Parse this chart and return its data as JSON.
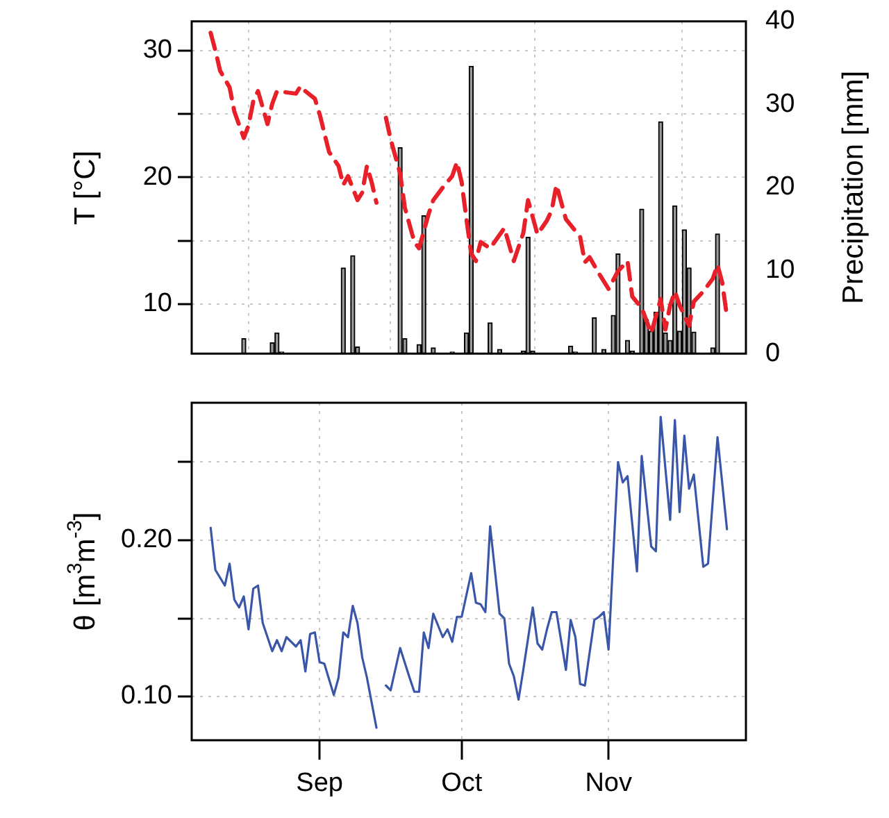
{
  "chart_data": [
    {
      "type": "bar",
      "ylabel": "T [°C]",
      "y2label": "Precipitation [mm]",
      "xlim": [
        "--08-05",
        "--11-30"
      ],
      "xticks": [
        {
          "value": "--09-01",
          "label": null
        },
        {
          "value": "--10-01",
          "label": null
        },
        {
          "value": "--11-01",
          "label": null
        }
      ],
      "ylim": [
        6.1,
        32.3
      ],
      "yticks": [
        10,
        {
          "value": 15,
          "label": null
        },
        20,
        {
          "value": 25,
          "label": null
        },
        30
      ],
      "y2lim": [
        0,
        40
      ],
      "y2ticks": [
        0,
        10,
        20,
        30,
        40
      ],
      "grid": true,
      "tick_labels": "y",
      "series": [
        {
          "type": "line",
          "color": "#e8202a",
          "line_style": "dashed",
          "x": [
            "--08-09",
            "--08-10",
            "--08-11",
            "--08-13",
            "--08-14",
            "--08-16",
            "--08-17",
            "--08-18",
            "--08-19",
            "--08-21",
            "--08-22",
            "--08-23",
            "--08-27",
            "--08-28",
            "--08-29",
            "--08-31",
            "--09-01",
            "--09-03",
            "--09-05",
            "--09-06",
            "--09-07",
            "--09-09",
            "--09-10",
            "--09-11",
            "--09-12",
            "--09-13",
            "--09-14",
            "--09-15",
            "--09-16",
            "--09-18",
            "--09-19",
            "--09-21",
            "--09-22",
            "--09-24",
            "--09-25",
            "--09-27",
            "--09-29",
            "--09-30",
            "--10-01",
            "--10-02",
            "--10-03",
            "--10-04",
            "--10-05",
            "--10-07",
            "--10-10",
            "--10-12",
            "--10-14",
            "--10-15",
            "--10-17",
            "--10-19",
            "--10-20",
            "--10-21",
            "--10-23",
            "--10-26",
            "--10-27",
            "--10-28",
            "--10-30",
            "--11-01",
            "--11-03",
            "--11-05",
            "--11-06",
            "--11-08",
            "--11-10",
            "--11-12",
            "--11-13",
            "--11-14",
            "--11-15",
            "--11-16",
            "--11-18",
            "--11-19",
            "--11-21",
            "--11-23",
            "--11-24",
            "--11-25",
            "--11-26"
          ],
          "values": [
            31.4,
            30.0,
            28.4,
            27.1,
            25.2,
            23.1,
            24.1,
            26.0,
            26.8,
            24.2,
            25.8,
            26.8,
            26.6,
            27.2,
            26.8,
            26.2,
            25.0,
            22.0,
            20.9,
            19.4,
            20.1,
            18.2,
            18.8,
            20.9,
            19.6,
            18.0,
            null,
            24.7,
            23.0,
            20.3,
            17.6,
            14.9,
            14.4,
            17.1,
            18.2,
            19.2,
            20.1,
            21.2,
            19.6,
            16.7,
            14.0,
            13.4,
            14.9,
            14.4,
            16.0,
            13.4,
            15.6,
            18.2,
            15.5,
            16.6,
            17.4,
            19.4,
            16.7,
            15.3,
            13.3,
            13.7,
            12.4,
            11.2,
            12.6,
            13.4,
            10.6,
            9.7,
            7.7,
            10.4,
            8.0,
            9.9,
            11.0,
            9.9,
            8.3,
            10.2,
            11.0,
            12.0,
            13.1,
            11.7,
            9.0
          ]
        },
        {
          "type": "bar",
          "axis": "y2",
          "color": "#9a9a9a",
          "x": [
            "--08-16",
            "--08-22",
            "--08-23",
            "--08-24",
            "--09-06",
            "--09-08",
            "--09-09",
            "--09-18",
            "--09-19",
            "--09-22",
            "--09-23",
            "--09-25",
            "--09-29",
            "--10-02",
            "--10-03",
            "--10-07",
            "--10-09",
            "--10-14",
            "--10-15",
            "--10-16",
            "--10-24",
            "--10-25",
            "--10-29",
            "--10-31",
            "--11-02",
            "--11-03",
            "--11-05",
            "--11-06",
            "--11-08",
            "--11-09",
            "--11-10",
            "--11-11",
            "--11-12",
            "--11-13",
            "--11-14",
            "--11-15",
            "--11-16",
            "--11-17",
            "--11-18",
            "--11-19",
            "--11-23",
            "--11-24"
          ],
          "values": [
            1.8,
            1.3,
            2.5,
            0.2,
            10.3,
            11.8,
            0.8,
            24.8,
            1.8,
            1.1,
            16.6,
            0.7,
            0.2,
            2.5,
            34.6,
            3.7,
            0.5,
            0.3,
            14.0,
            0.3,
            0.9,
            0.2,
            4.3,
            0.5,
            4.6,
            12.0,
            1.6,
            0.3,
            17.4,
            4.1,
            2.7,
            5.0,
            27.9,
            2.5,
            1.6,
            17.8,
            2.7,
            14.9,
            10.3,
            2.6,
            0.7,
            14.4
          ]
        }
      ]
    },
    {
      "type": "line",
      "ylabel": "θ [m$^{3}$m$^{-3}$]",
      "xlim": [
        "--08-05",
        "--11-30"
      ],
      "xticks": [
        {
          "value": "--09-01",
          "label": "Sep"
        },
        {
          "value": "--10-01",
          "label": "Oct"
        },
        {
          "value": "--11-01",
          "label": "Nov"
        }
      ],
      "ylim": [
        0.072,
        0.288
      ],
      "yticks": [
        {
          "value": 0.1,
          "label": "0.10"
        },
        {
          "value": 0.15,
          "label": null
        },
        {
          "value": 0.2,
          "label": "0.20"
        },
        {
          "value": 0.25,
          "label": null
        }
      ],
      "grid": true,
      "series": [
        {
          "color": "#3a56a8",
          "x": [
            "--08-09",
            "--08-10",
            "--08-12",
            "--08-13",
            "--08-14",
            "--08-15",
            "--08-16",
            "--08-17",
            "--08-18",
            "--08-19",
            "--08-20",
            "--08-22",
            "--08-23",
            "--08-24",
            "--08-25",
            "--08-27",
            "--08-28",
            "--08-29",
            "--08-30",
            "--08-31",
            "--09-01",
            "--09-02",
            "--09-04",
            "--09-05",
            "--09-06",
            "--09-07",
            "--09-08",
            "--09-09",
            "--09-10",
            "--09-11",
            "--09-13",
            "--09-14",
            "--09-15",
            "--09-16",
            "--09-18",
            "--09-20",
            "--09-21",
            "--09-22",
            "--09-23",
            "--09-24",
            "--09-25",
            "--09-27",
            "--09-28",
            "--09-29",
            "--09-30",
            "--10-01",
            "--10-03",
            "--10-04",
            "--10-05",
            "--10-06",
            "--10-07",
            "--10-09",
            "--10-10",
            "--10-11",
            "--10-12",
            "--10-13",
            "--10-14",
            "--10-16",
            "--10-17",
            "--10-18",
            "--10-19",
            "--10-20",
            "--10-21",
            "--10-23",
            "--10-24",
            "--10-25",
            "--10-26",
            "--10-27",
            "--10-29",
            "--10-30",
            "--10-31",
            "--11-01",
            "--11-03",
            "--11-04",
            "--11-05",
            "--11-07",
            "--11-08",
            "--11-10",
            "--11-11",
            "--11-12",
            "--11-14",
            "--11-15",
            "--11-16",
            "--11-17",
            "--11-18",
            "--11-19",
            "--11-21",
            "--11-22",
            "--11-24",
            "--11-26"
          ],
          "values": [
            0.208,
            0.181,
            0.171,
            0.185,
            0.162,
            0.157,
            0.164,
            0.143,
            0.169,
            0.171,
            0.147,
            0.129,
            0.136,
            0.129,
            0.138,
            0.132,
            0.136,
            0.116,
            0.14,
            0.141,
            0.122,
            0.121,
            0.101,
            0.112,
            0.141,
            0.138,
            0.158,
            0.147,
            0.125,
            0.112,
            0.08,
            null,
            0.107,
            0.104,
            0.131,
            0.112,
            0.103,
            0.103,
            0.141,
            0.131,
            0.153,
            0.138,
            0.143,
            0.135,
            0.151,
            0.151,
            0.179,
            0.16,
            0.159,
            0.154,
            0.209,
            0.153,
            0.15,
            0.121,
            0.113,
            0.098,
            0.117,
            0.157,
            0.134,
            0.13,
            0.143,
            0.154,
            0.154,
            0.117,
            0.149,
            0.138,
            0.108,
            0.107,
            0.149,
            0.151,
            0.154,
            0.13,
            0.25,
            0.237,
            0.241,
            0.18,
            0.254,
            0.196,
            0.193,
            0.279,
            0.213,
            0.277,
            0.218,
            0.267,
            0.233,
            0.242,
            0.183,
            0.185,
            0.266,
            0.207
          ]
        }
      ]
    }
  ]
}
